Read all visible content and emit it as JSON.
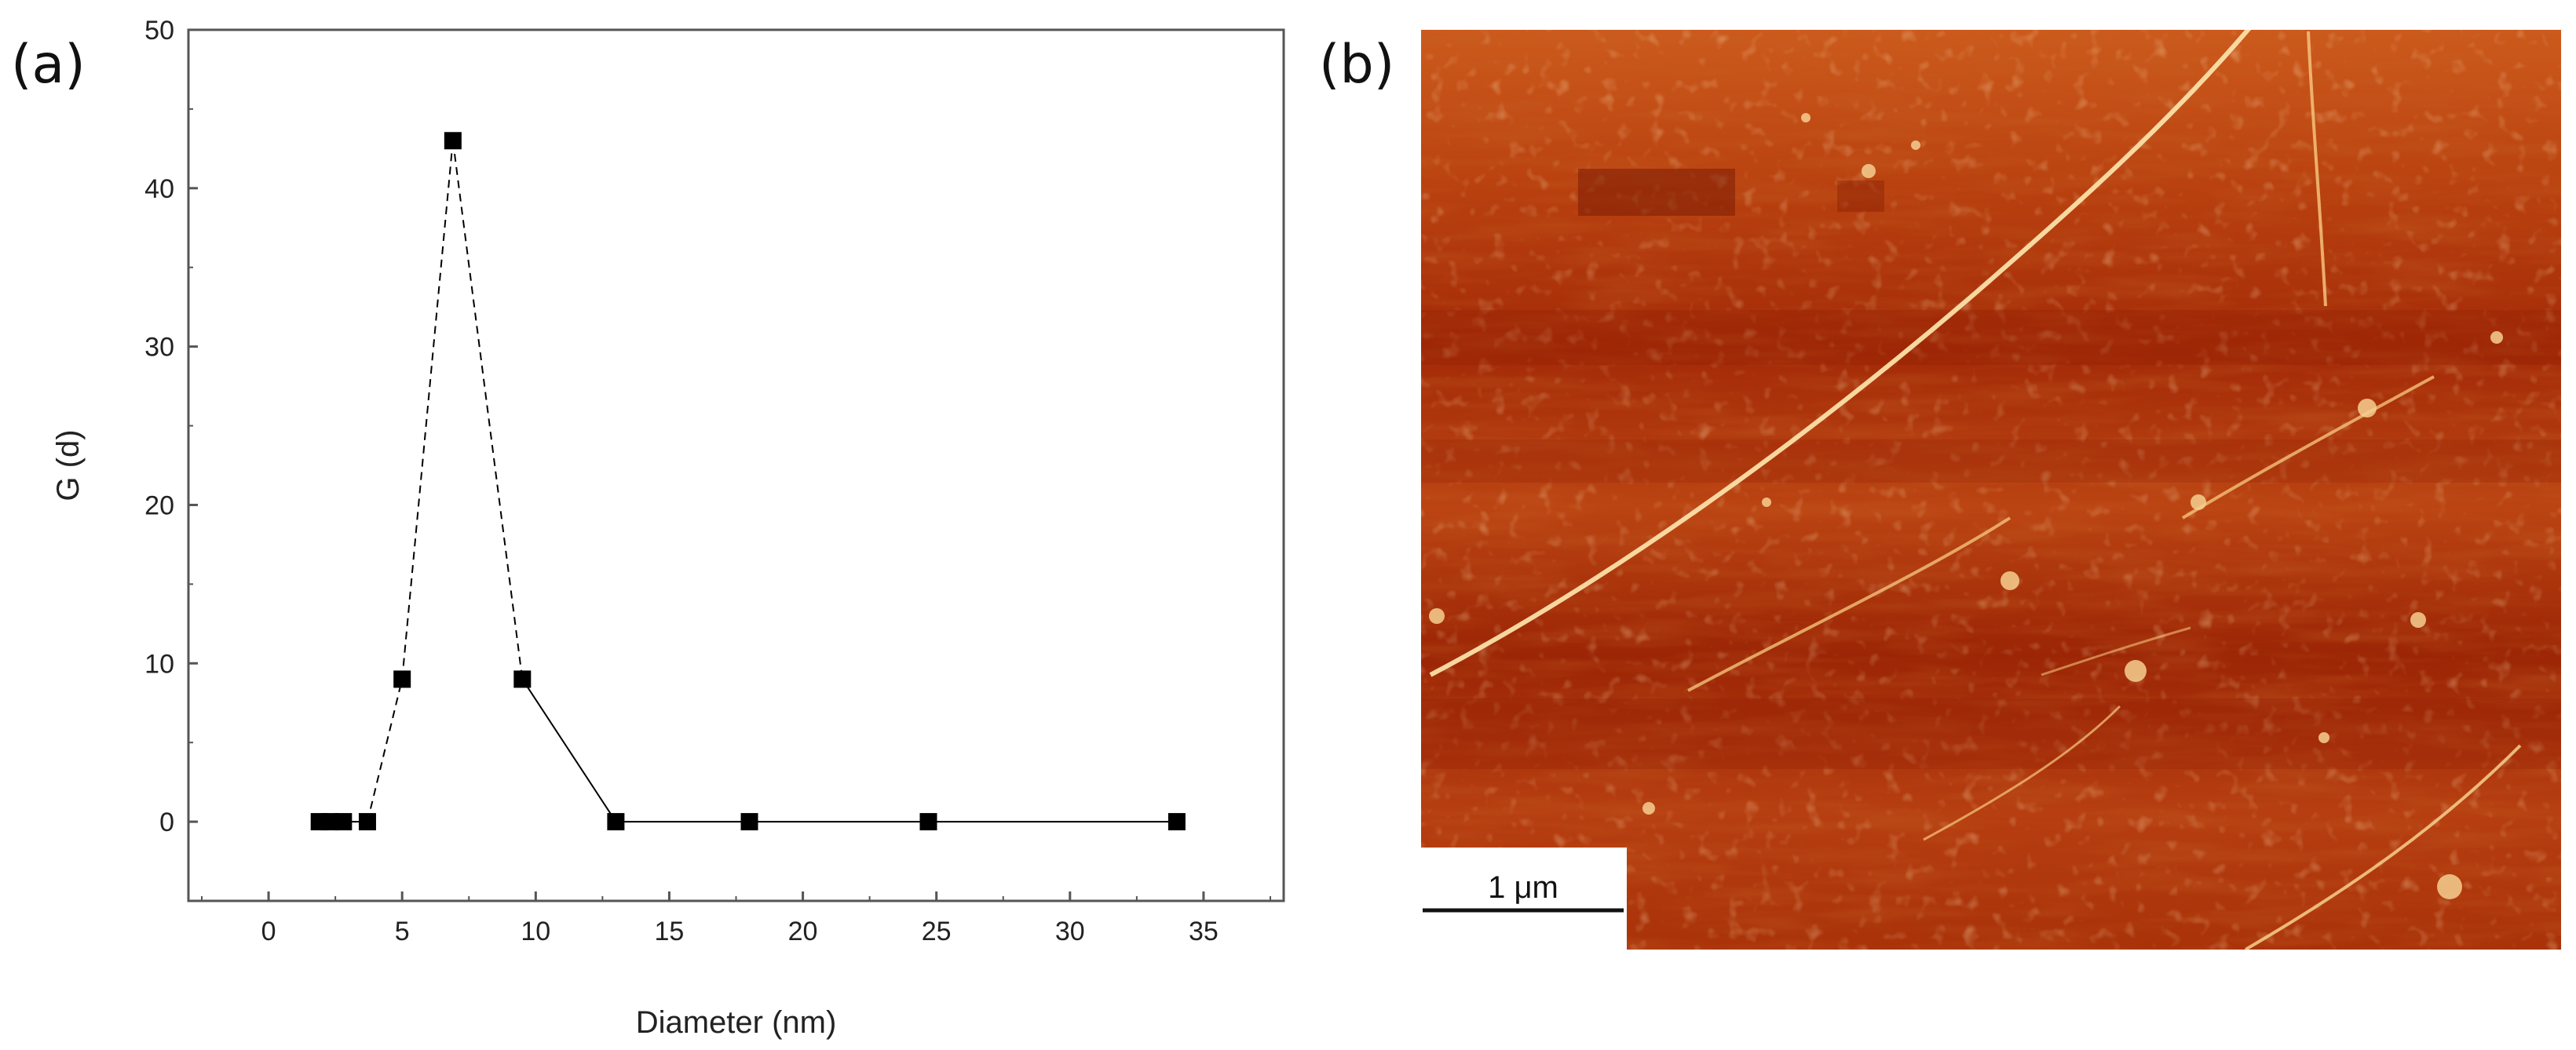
{
  "figure": {
    "panel_a_label": "(a)",
    "panel_b_label": "(b)"
  },
  "chart_data": {
    "type": "scatter",
    "title": "",
    "xlabel": "Diameter (nm)",
    "ylabel": "G (d)",
    "xlim": [
      -3,
      38
    ],
    "ylim": [
      -5,
      50
    ],
    "xticks": [
      0,
      5,
      10,
      15,
      20,
      25,
      30,
      35
    ],
    "yticks": [
      0,
      10,
      20,
      30,
      40,
      50
    ],
    "grid": false,
    "marker": "square",
    "color": "#000000",
    "series": [
      {
        "x": [
          1.9,
          2.3,
          2.8,
          3.7,
          5.0,
          6.9,
          9.5,
          13.0,
          18.0,
          24.7,
          34.0
        ],
        "y": [
          0,
          0,
          0,
          0,
          9,
          43,
          9,
          0,
          0,
          0,
          0
        ],
        "line_styles": [
          "solid",
          "solid",
          "solid",
          "dashed",
          "dashed",
          "dashed",
          "solid",
          "solid",
          "solid",
          "solid"
        ]
      }
    ]
  },
  "afm_image": {
    "scale_bar_label": "1 μm",
    "colors": {
      "base": "#b53a0d",
      "dark": "#8e1d04",
      "bright": "#f4c27a",
      "highlight": "#fbe8c0"
    }
  }
}
